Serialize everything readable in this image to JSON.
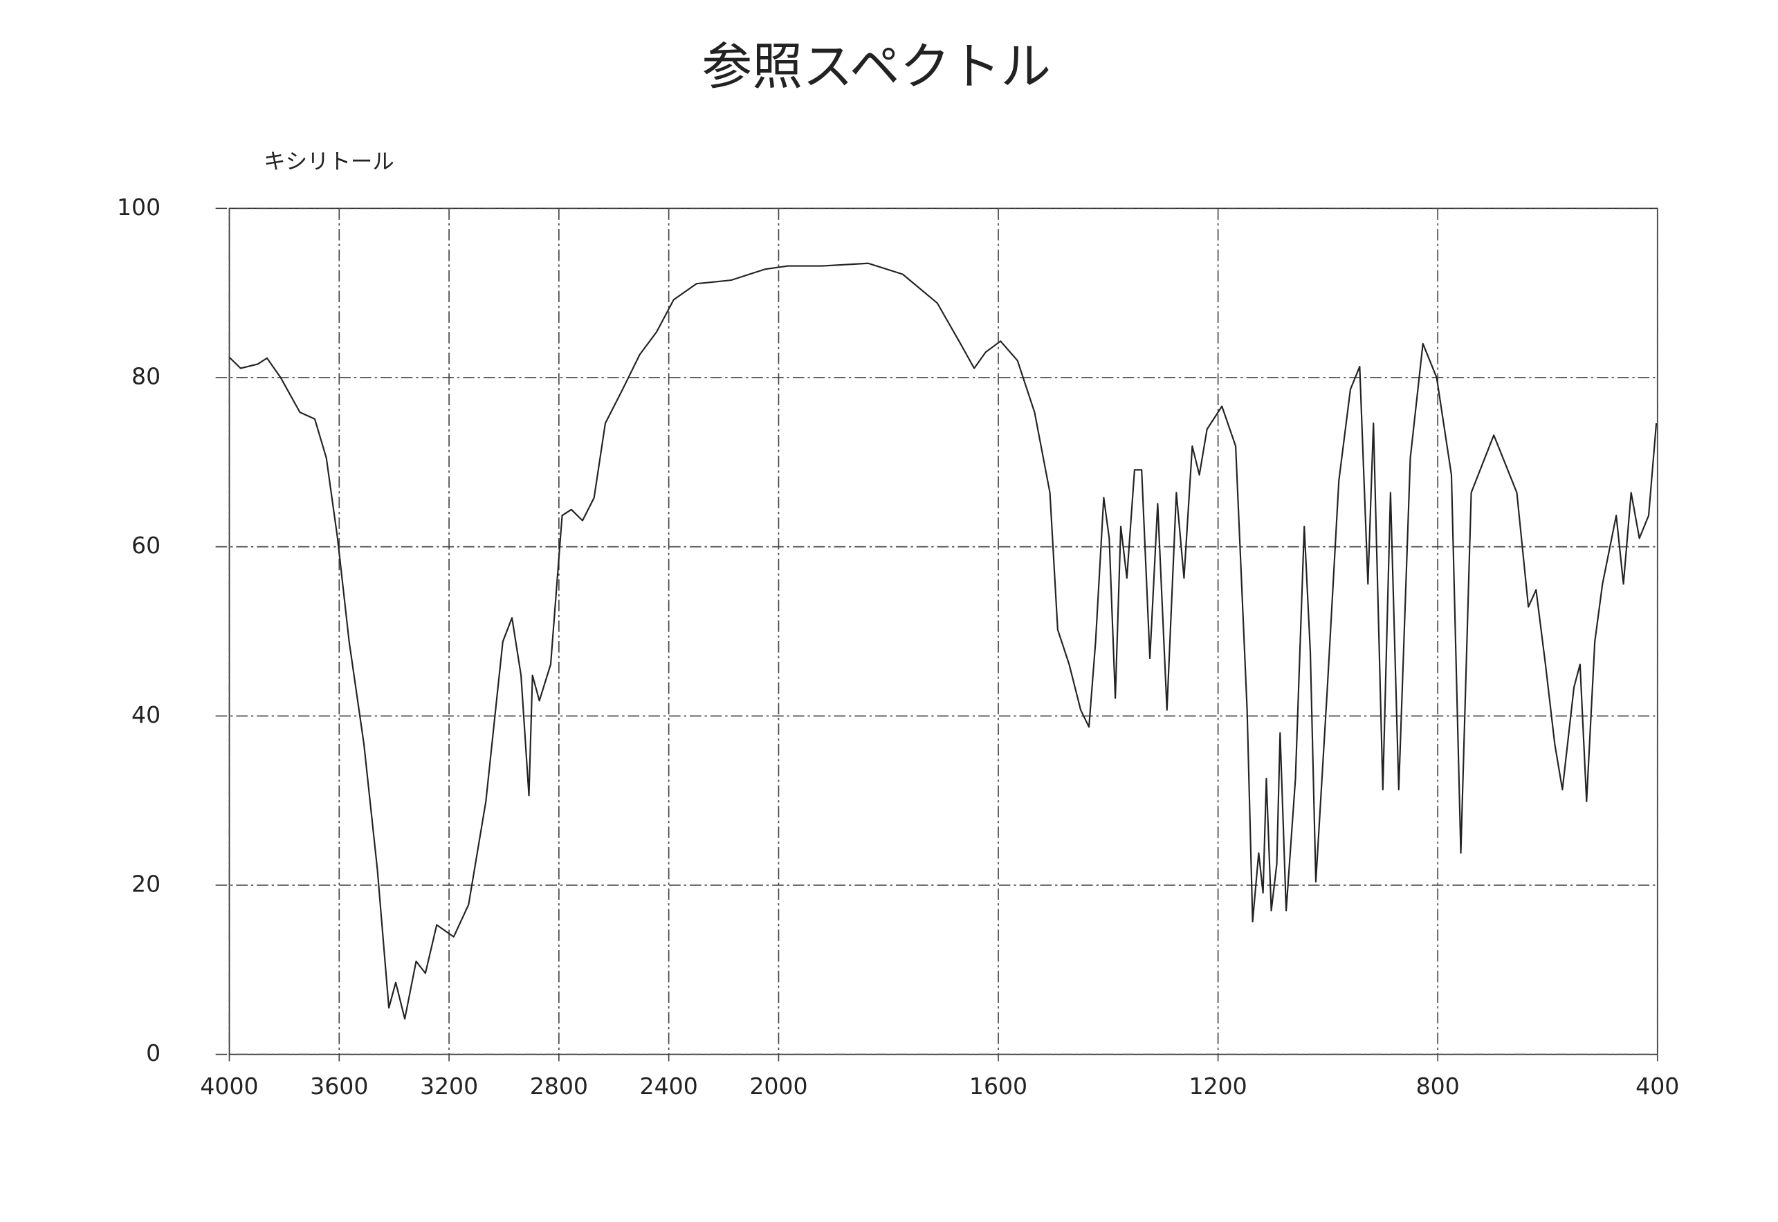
{
  "chart_data": {
    "type": "line",
    "title": "参照スペクトル",
    "subtitle": "キシリトール",
    "x": [
      4000,
      3959,
      3896,
      3863,
      3813,
      3743,
      3689,
      3647,
      3606,
      3564,
      3510,
      3461,
      3419,
      3394,
      3361,
      3320,
      3286,
      3245,
      3183,
      3129,
      3066,
      3004,
      2971,
      2938,
      2909,
      2896,
      2871,
      2830,
      2788,
      2755,
      2714,
      2672,
      2631,
      2568,
      2506,
      2444,
      2382,
      2299,
      2174,
      2050,
      1983,
      1921,
      1837,
      1774,
      1711,
      1669,
      1644,
      1623,
      1596,
      1565,
      1534,
      1506,
      1492,
      1471,
      1450,
      1435,
      1423,
      1408,
      1398,
      1387,
      1377,
      1366,
      1352,
      1339,
      1324,
      1310,
      1293,
      1276,
      1262,
      1247,
      1234,
      1220,
      1193,
      1168,
      1147,
      1137,
      1126,
      1118,
      1112,
      1103,
      1093,
      1087,
      1076,
      1059,
      1043,
      1032,
      1022,
      1001,
      980,
      959,
      942,
      927,
      917,
      900,
      886,
      871,
      850,
      827,
      802,
      775,
      758,
      739,
      698,
      656,
      635,
      621,
      604,
      587,
      573,
      552,
      541,
      529,
      514,
      500,
      475,
      462,
      448,
      433,
      416,
      402
    ],
    "values": [
      82.4,
      81.1,
      81.6,
      82.3,
      80,
      75.9,
      75.1,
      70.5,
      61,
      48.8,
      36.7,
      21.8,
      5.5,
      8.5,
      4.2,
      11,
      9.6,
      15.3,
      13.9,
      17.7,
      29.9,
      48.8,
      51.6,
      44.8,
      30.6,
      44.8,
      41.8,
      46.1,
      63.7,
      64.4,
      63.1,
      65.8,
      74.6,
      78.6,
      82.7,
      85.4,
      89.2,
      91.1,
      91.5,
      92.8,
      93.2,
      93.2,
      93.5,
      92.2,
      88.8,
      84,
      81.1,
      83,
      84.3,
      82,
      75.9,
      66.4,
      50.2,
      46.1,
      40.7,
      38.7,
      48.8,
      65.8,
      61,
      42.1,
      62.4,
      56.3,
      69.1,
      69.1,
      46.8,
      65.1,
      40.7,
      66.4,
      56.3,
      71.9,
      68.5,
      73.9,
      76.6,
      71.9,
      40.7,
      15.7,
      23.8,
      19.1,
      32.6,
      17,
      22.5,
      38,
      17,
      32.6,
      62.4,
      47.5,
      20.4,
      43.4,
      67.8,
      78.6,
      81.3,
      55.6,
      74.6,
      31.3,
      66.4,
      31.3,
      70.5,
      84,
      80,
      68.5,
      23.8,
      66.4,
      73.2,
      66.4,
      52.9,
      54.9,
      46.1,
      36.7,
      31.3,
      43.4,
      46.1,
      29.9,
      48.8,
      55.6,
      63.7,
      55.6,
      66.4,
      61,
      63.7,
      74.6
    ],
    "color": "#222222",
    "xlim": [
      4000,
      400
    ],
    "ylim": [
      0,
      100
    ],
    "xticks": [
      4000,
      3600,
      3200,
      2800,
      2400,
      2000,
      1600,
      1200,
      800,
      400
    ],
    "yticks": [
      0,
      20,
      40,
      60,
      80,
      100
    ],
    "x_scale_break": 2000,
    "grid": true
  }
}
